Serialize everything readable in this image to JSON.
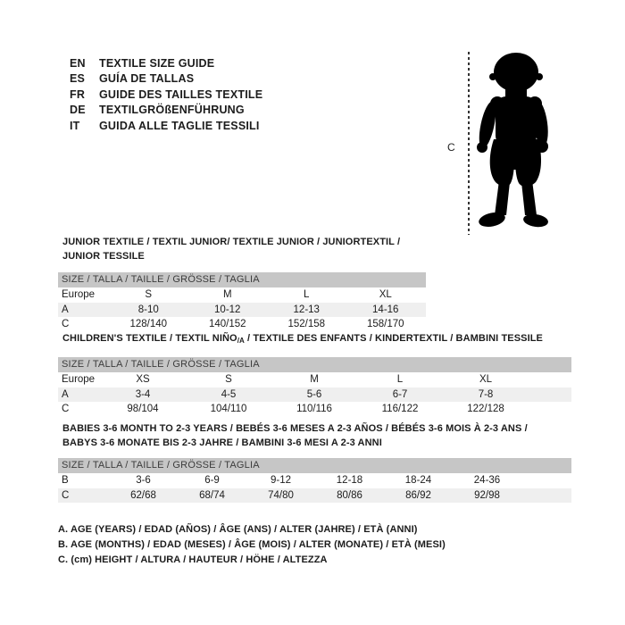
{
  "languages": {
    "items": [
      {
        "code": "EN",
        "label": "TEXTILE SIZE GUIDE"
      },
      {
        "code": "ES",
        "label": "GUÍA DE TALLAS"
      },
      {
        "code": "FR",
        "label": "GUIDE DES TAILLES TEXTILE"
      },
      {
        "code": "DE",
        "label": "TEXTILGRÖßENFÜHRUNG"
      },
      {
        "code": "IT",
        "label": "GUIDA ALLE TAGLIE TESSILI"
      }
    ]
  },
  "figure": {
    "measure_label": "C",
    "silhouette": "toddler-baby-silhouette"
  },
  "tables": [
    {
      "title_lines": [
        [
          {
            "t": "JUNIOR TEXTILE / TEXTIL JUNIOR/ TEXTILE JUNIOR / JUNIORTEXTIL / JUNIOR TESSILE",
            "sub": false
          }
        ]
      ],
      "size_header": "SIZE / TALLA / TAILLE / GRÖSSE / TAGLIA",
      "rows": [
        {
          "label": "Europe",
          "values": [
            "S",
            "M",
            "L",
            "XL"
          ]
        },
        {
          "label": "A",
          "values": [
            "8-10",
            "10-12",
            "12-13",
            "14-16"
          ]
        },
        {
          "label": "C",
          "values": [
            "128/140",
            "140/152",
            "152/158",
            "158/170"
          ]
        }
      ]
    },
    {
      "title_lines": [
        [
          {
            "t": "CHILDREN'S TEXTILE / TEXTIL NIÑO",
            "sub": false
          },
          {
            "t": "/A",
            "sub": true
          },
          {
            "t": " / TEXTILE DES ENFANTS / KINDERTEXTIL / BAMBINI TESSILE",
            "sub": false
          }
        ]
      ],
      "size_header": "SIZE / TALLA / TAILLE / GRÖSSE / TAGLIA",
      "rows": [
        {
          "label": "Europe",
          "values": [
            "XS",
            "S",
            "M",
            "L",
            "XL"
          ]
        },
        {
          "label": "A",
          "values": [
            "3-4",
            "4-5",
            "5-6",
            "6-7",
            "7-8"
          ]
        },
        {
          "label": "C",
          "values": [
            "98/104",
            "104/110",
            "110/116",
            "116/122",
            "122/128"
          ]
        }
      ]
    },
    {
      "title_lines": [
        [
          {
            "t": "BABIES 3-6 MONTH TO 2-3 YEARS / BEBÉS 3-6 MESES A 2-3 AÑOS / BÉBÉS 3-6 MOIS À 2-3 ANS /",
            "sub": false
          }
        ],
        [
          {
            "t": "BABYS 3-6 MONATE BIS 2-3 JAHRE / BAMBINI 3-6 MESI A 2-3 ANNI",
            "sub": false
          }
        ]
      ],
      "size_header": "SIZE / TALLA / TAILLE / GRÖSSE / TAGLIA",
      "rows": [
        {
          "label": "B",
          "values": [
            "3-6",
            "6-9",
            "9-12",
            "12-18",
            "18-24",
            "24-36"
          ]
        },
        {
          "label": "C",
          "values": [
            "62/68",
            "68/74",
            "74/80",
            "80/86",
            "86/92",
            "92/98"
          ]
        }
      ]
    }
  ],
  "notes": [
    "A. AGE (YEARS) / EDAD (AÑOS) / ÂGE (ANS) / ALTER (JAHRE) / ETÀ (ANNI)",
    "B. AGE (MONTHS) / EDAD (MESES) / ÂGE (MOIS) / ALTER (MONATE) / ETÀ (MESI)",
    "C. (cm) HEIGHT / ALTURA / HAUTEUR / HÖHE / ALTEZZA"
  ],
  "colors": {
    "header_bar": "#c6c6c6",
    "row_stripe": "#efefef",
    "text": "#1c1c1c",
    "header_text": "#3c3c3c",
    "silhouette": "#000000"
  }
}
